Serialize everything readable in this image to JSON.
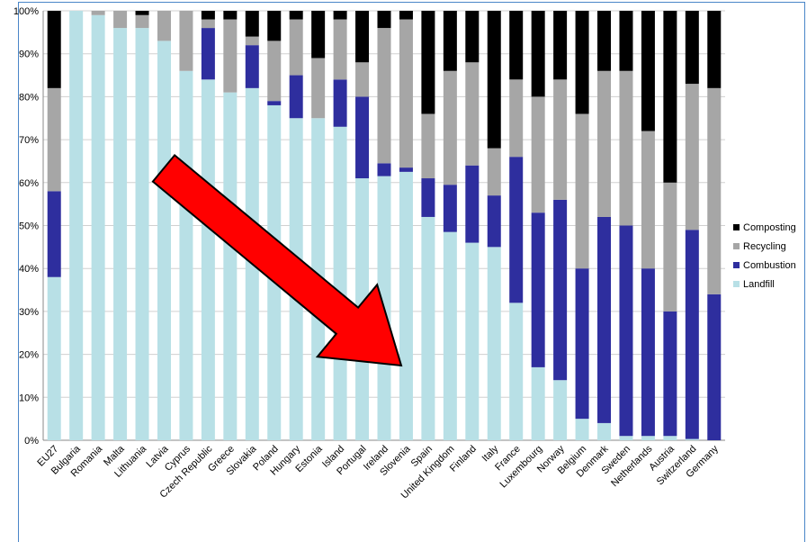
{
  "chart_data": {
    "type": "bar",
    "stacked": true,
    "stack_mode": "percent",
    "title": "",
    "xlabel": "",
    "ylabel": "",
    "ylim": [
      0,
      100
    ],
    "y_ticks": [
      "0%",
      "10%",
      "20%",
      "30%",
      "40%",
      "50%",
      "60%",
      "70%",
      "80%",
      "90%",
      "100%"
    ],
    "grid": true,
    "legend_position": "right",
    "categories": [
      "EU27",
      "Bulgaria",
      "Romania",
      "Malta",
      "Lithuania",
      "Latvia",
      "Cyprus",
      "Czech Republic",
      "Greece",
      "Slovakia",
      "Poland",
      "Hungary",
      "Estonia",
      "Island",
      "Portugal",
      "Ireland",
      "Slovenia",
      "Spain",
      "United Kingdom",
      "Finland",
      "Italy",
      "France",
      "Luxembourg",
      "Norway",
      "Belgium",
      "Denmark",
      "Sweden",
      "Netherlands",
      "Austria",
      "Switzerland",
      "Germany"
    ],
    "series": [
      {
        "name": "Landfill",
        "color": "#b8e0e6",
        "values": [
          38,
          100,
          99,
          96,
          96,
          93,
          86,
          84,
          81,
          82,
          78,
          75,
          75,
          73,
          61,
          61.5,
          62.5,
          52,
          48.5,
          46,
          45,
          32,
          17,
          14,
          5,
          4,
          1,
          1,
          1,
          0.3,
          0
        ]
      },
      {
        "name": "Combustion",
        "color": "#2e2e9e",
        "values": [
          20,
          0,
          0,
          0,
          0,
          0,
          0,
          12,
          0,
          10,
          1,
          10,
          0,
          11,
          19,
          3,
          1,
          9,
          11,
          18,
          12,
          34,
          36,
          42,
          35,
          48,
          49,
          39,
          29,
          48.7,
          34
        ]
      },
      {
        "name": "Recycling",
        "color": "#a6a6a6",
        "values": [
          24,
          0,
          1,
          4,
          3,
          7,
          14,
          2,
          17,
          2,
          14,
          13,
          14,
          14,
          8,
          31.5,
          34.5,
          15,
          26.5,
          24,
          11,
          18,
          27,
          28,
          36,
          34,
          36,
          32,
          30,
          34,
          48
        ]
      },
      {
        "name": "Composting",
        "color": "#000000",
        "values": [
          18,
          0,
          0,
          0,
          1,
          0,
          0,
          2,
          2,
          6,
          7,
          2,
          11,
          2,
          12,
          4,
          2,
          24,
          14,
          12,
          32,
          16,
          20,
          16,
          24,
          14,
          14,
          28,
          40,
          17,
          18
        ]
      }
    ],
    "annotations": [
      {
        "type": "arrow",
        "color": "#ff0000",
        "direction": "down-right"
      }
    ]
  }
}
